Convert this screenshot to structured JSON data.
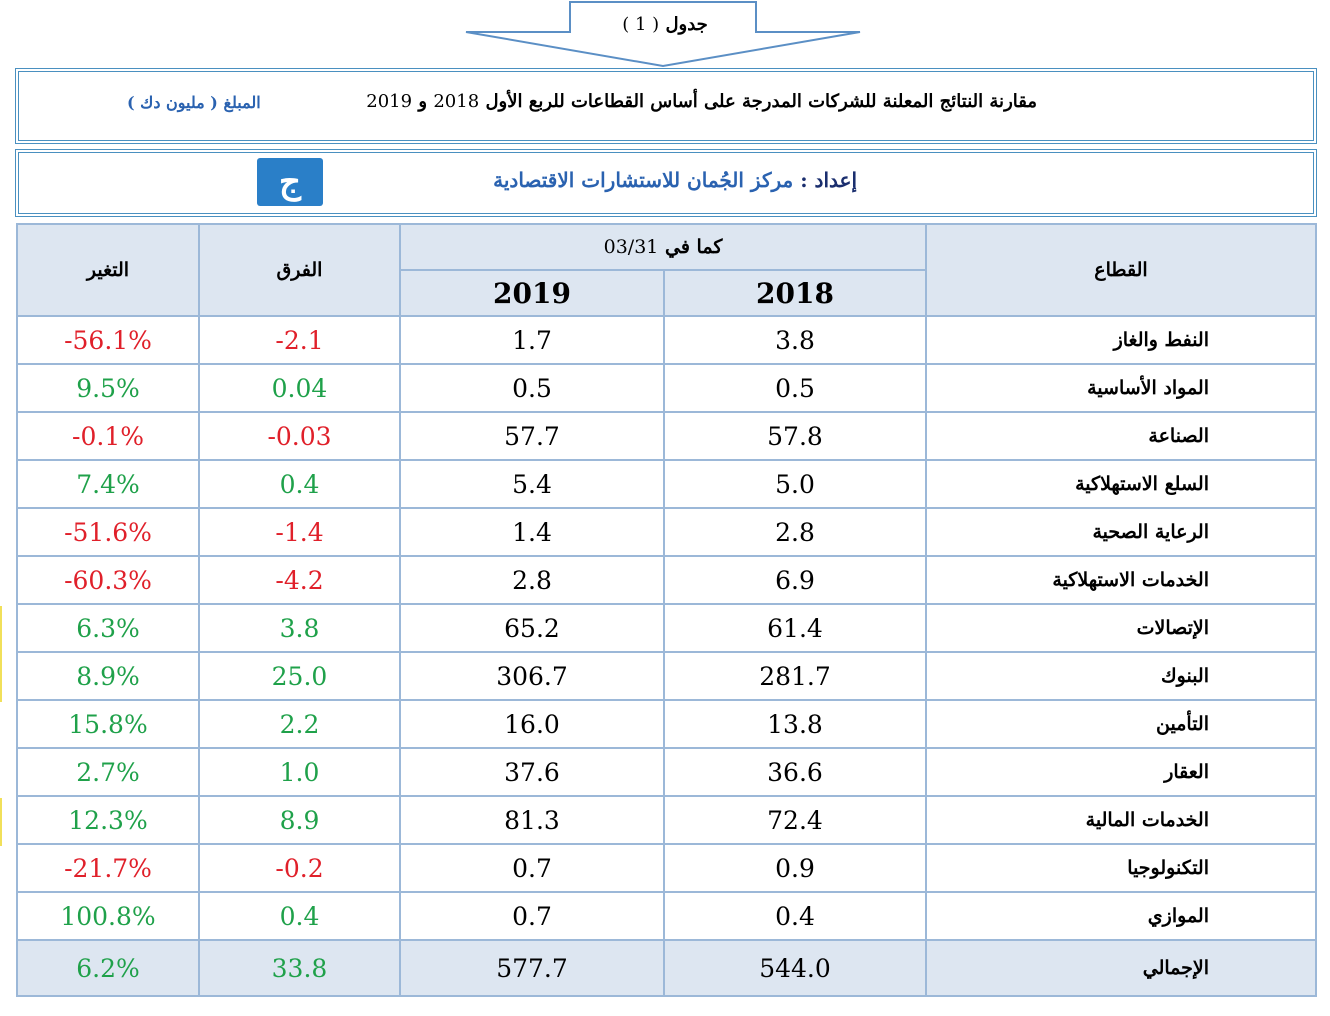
{
  "caption": {
    "word": "جدول",
    "number": "( 1 )"
  },
  "title": {
    "text": "مقارنة النتائج المعلنة للشركات المدرجة على أساس القطاعات للربع الأول",
    "year1": "2018",
    "conj": "و",
    "year2": "2019"
  },
  "amount": "المبلغ ( مليون دك )",
  "prepared": {
    "label": "إعداد :",
    "name": "مركز الجُمان للاستشارات الاقتصادية"
  },
  "logo": {
    "glyph": "ج",
    "color": "#2a7fc8"
  },
  "colors": {
    "negative": "#e0202a",
    "positive": "#1fa14a",
    "header_bg": "#dde6f1",
    "border": "#9cb8d8"
  },
  "headers": {
    "sector": "القطاع",
    "as_of_label": "كما في",
    "as_of_date": "03/31",
    "y2018": "2018",
    "y2019": "2019",
    "diff": "الفرق",
    "change": "التغير"
  },
  "rows": [
    {
      "sector": "النفط والغاز",
      "v2018": "3.8",
      "v2019": "1.7",
      "diff": "-2.1",
      "change": "-56.1%"
    },
    {
      "sector": "المواد الأساسية",
      "v2018": "0.5",
      "v2019": "0.5",
      "diff": "0.04",
      "change": "9.5%"
    },
    {
      "sector": "الصناعة",
      "v2018": "57.8",
      "v2019": "57.7",
      "diff": "-0.03",
      "change": "-0.1%"
    },
    {
      "sector": "السلع الاستهلاكية",
      "v2018": "5.0",
      "v2019": "5.4",
      "diff": "0.4",
      "change": "7.4%"
    },
    {
      "sector": "الرعاية الصحية",
      "v2018": "2.8",
      "v2019": "1.4",
      "diff": "-1.4",
      "change": "-51.6%"
    },
    {
      "sector": "الخدمات الاستهلاكية",
      "v2018": "6.9",
      "v2019": "2.8",
      "diff": "-4.2",
      "change": "-60.3%"
    },
    {
      "sector": "الإتصالات",
      "v2018": "61.4",
      "v2019": "65.2",
      "diff": "3.8",
      "change": "6.3%"
    },
    {
      "sector": "البنوك",
      "v2018": "281.7",
      "v2019": "306.7",
      "diff": "25.0",
      "change": "8.9%"
    },
    {
      "sector": "التأمين",
      "v2018": "13.8",
      "v2019": "16.0",
      "diff": "2.2",
      "change": "15.8%"
    },
    {
      "sector": "العقار",
      "v2018": "36.6",
      "v2019": "37.6",
      "diff": "1.0",
      "change": "2.7%"
    },
    {
      "sector": "الخدمات المالية",
      "v2018": "72.4",
      "v2019": "81.3",
      "diff": "8.9",
      "change": "12.3%"
    },
    {
      "sector": "التكنولوجيا",
      "v2018": "0.9",
      "v2019": "0.7",
      "diff": "-0.2",
      "change": "-21.7%"
    },
    {
      "sector": "الموازي",
      "v2018": "0.4",
      "v2019": "0.7",
      "diff": "0.4",
      "change": "100.8%"
    }
  ],
  "total": {
    "sector": "الإجمالي",
    "v2018": "544.0",
    "v2019": "577.7",
    "diff": "33.8",
    "change": "6.2%"
  }
}
